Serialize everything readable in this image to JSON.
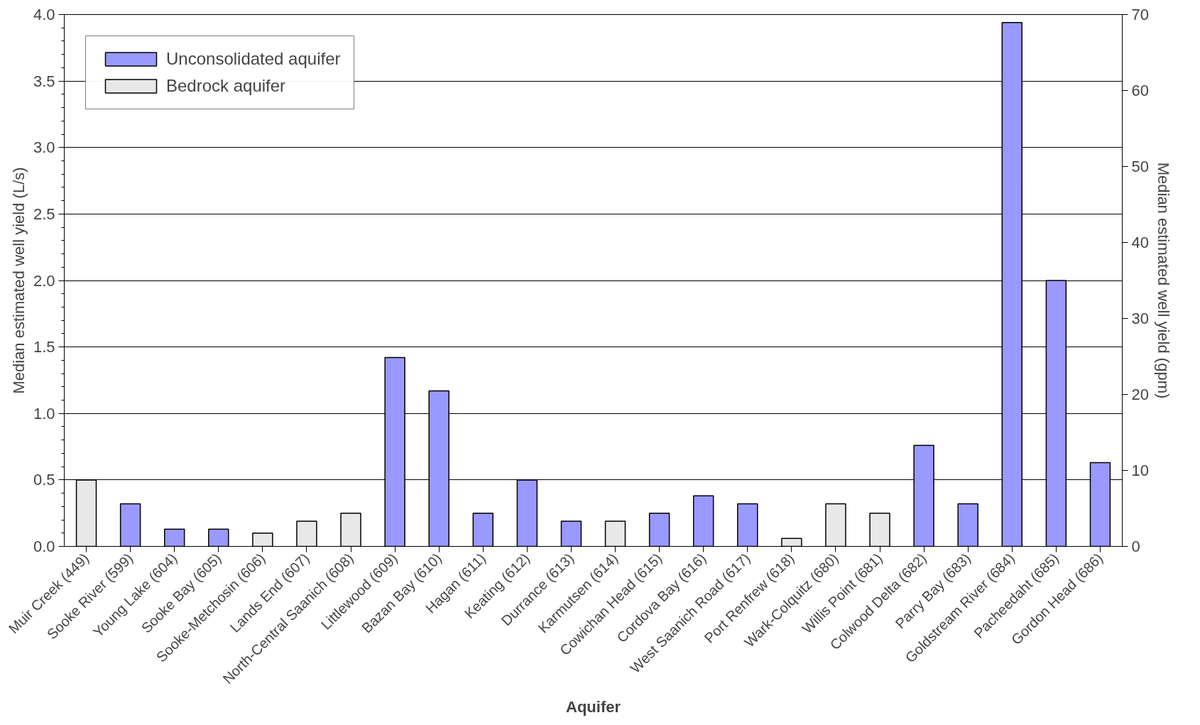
{
  "chart_data": {
    "type": "bar",
    "xlabel": "Aquifer",
    "ylabel": "Median estimated well yield (L/s)",
    "y2label": "Median estimated well yield (gpm)",
    "categories": [
      "Muir Creek (449)",
      "Sooke River (599)",
      "Young Lake (604)",
      "Sooke Bay (605)",
      "Sooke-Metchosin (606)",
      "Lands End (607)",
      "North-Central Saanich (608)",
      "Littlewood (609)",
      "Bazan Bay (610)",
      "Hagan (611)",
      "Keating (612)",
      "Durrance (613)",
      "Karmutsen (614)",
      "Cowichan Head (615)",
      "Cordova Bay (616)",
      "West Saanich Road (617)",
      "Port Renfrew (618)",
      "Wark-Colquitz (680)",
      "Willis Point (681)",
      "Colwood Delta (682)",
      "Parry Bay (683)",
      "Goldstream River (684)",
      "Pacheedaht (685)",
      "Gordon Head (686)"
    ],
    "series": [
      {
        "name": "Unconsolidated aquifer",
        "color": "#9999ff",
        "values": [
          null,
          0.32,
          0.13,
          0.13,
          null,
          null,
          null,
          1.42,
          1.17,
          0.25,
          0.5,
          0.19,
          null,
          0.25,
          0.38,
          0.32,
          null,
          null,
          null,
          0.76,
          0.32,
          3.94,
          2.0,
          0.63
        ]
      },
      {
        "name": "Bedrock aquifer",
        "color": "#e8e8e8",
        "values": [
          0.5,
          null,
          null,
          null,
          0.1,
          0.19,
          0.25,
          null,
          null,
          null,
          null,
          null,
          0.19,
          null,
          null,
          null,
          0.06,
          0.32,
          0.25,
          null,
          null,
          null,
          null,
          null
        ]
      }
    ],
    "ylim": [
      0,
      4.0
    ],
    "yticks": [
      {
        "value": 0,
        "label": "0.0"
      },
      {
        "value": 0.5,
        "label": "0.5"
      },
      {
        "value": 1,
        "label": "1.0"
      },
      {
        "value": 1.5,
        "label": "1.5"
      },
      {
        "value": 2,
        "label": "2.0"
      },
      {
        "value": 2.5,
        "label": "2.5"
      },
      {
        "value": 3,
        "label": "3.0"
      },
      {
        "value": 3.5,
        "label": "3.5"
      },
      {
        "value": 4,
        "label": "4.0"
      }
    ],
    "y2lim": [
      0,
      70
    ],
    "y2ticks": [
      0,
      10,
      20,
      30,
      40,
      50,
      60,
      70
    ],
    "grid": "y",
    "legend": "top left"
  }
}
